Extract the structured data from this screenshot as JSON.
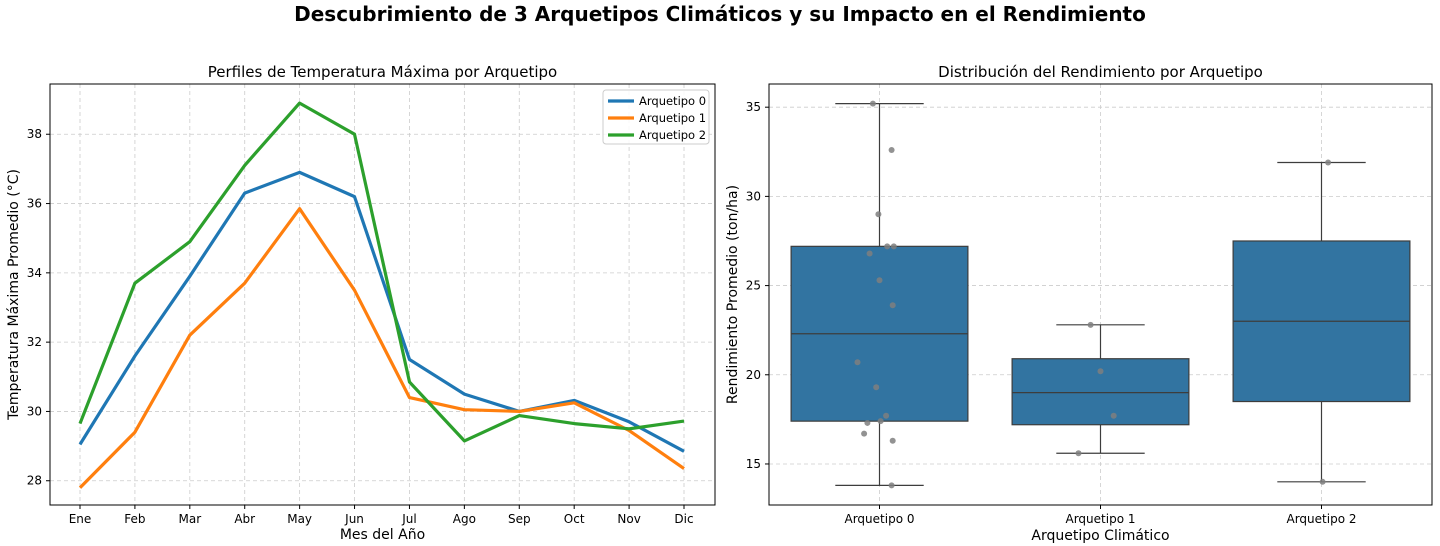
{
  "suptitle": "Descubrimiento de 3 Arquetipos Climáticos y su Impacto en el Rendimiento",
  "chart_data": [
    {
      "type": "line",
      "title": "Perfiles de Temperatura Máxima por Arquetipo",
      "xlabel": "Mes del Año",
      "ylabel": "Temperatura Máxima Promedio (°C)",
      "categories": [
        "Ene",
        "Feb",
        "Mar",
        "Abr",
        "May",
        "Jun",
        "Jul",
        "Ago",
        "Sep",
        "Oct",
        "Nov",
        "Dic"
      ],
      "ylim": [
        27.3,
        39.45
      ],
      "yticks": [
        28,
        30,
        32,
        34,
        36,
        38
      ],
      "grid": true,
      "legend": "top-right",
      "series": [
        {
          "name": "Arquetipo 0",
          "color": "#1f77b4",
          "values": [
            29.05,
            31.6,
            33.9,
            36.3,
            36.9,
            36.2,
            31.5,
            30.5,
            30.0,
            30.32,
            29.7,
            28.85
          ]
        },
        {
          "name": "Arquetipo 1",
          "color": "#ff7f0e",
          "values": [
            27.8,
            29.4,
            32.2,
            33.7,
            35.85,
            33.5,
            30.4,
            30.05,
            30.0,
            30.25,
            29.45,
            28.35
          ]
        },
        {
          "name": "Arquetipo 2",
          "color": "#2ca02c",
          "values": [
            29.65,
            33.7,
            34.9,
            37.1,
            38.9,
            38.0,
            30.85,
            29.15,
            29.88,
            29.65,
            29.5,
            29.72
          ]
        }
      ]
    },
    {
      "type": "box",
      "title": "Distribución del Rendimiento por Arquetipo",
      "xlabel": "Arquetipo Climático",
      "ylabel": "Rendimiento Promedio (ton/ha)",
      "categories": [
        "Arquetipo 0",
        "Arquetipo 1",
        "Arquetipo 2"
      ],
      "ylim": [
        12.7,
        36.3
      ],
      "yticks": [
        15,
        20,
        25,
        30,
        35
      ],
      "grid": true,
      "box_color": "#3274a1",
      "boxes": [
        {
          "whislo": 13.8,
          "q1": 17.4,
          "med": 22.3,
          "q3": 27.2,
          "whishi": 35.2
        },
        {
          "whislo": 15.6,
          "q1": 17.2,
          "med": 19.0,
          "q3": 20.9,
          "whishi": 22.8
        },
        {
          "whislo": 14.0,
          "q1": 18.5,
          "med": 23.0,
          "q3": 27.5,
          "whishi": 31.9
        }
      ],
      "points": [
        [
          35.2,
          32.6,
          29.0,
          27.2,
          27.2,
          26.8,
          25.3,
          23.9,
          20.7,
          19.3,
          17.7,
          17.4,
          17.3,
          16.7,
          16.3,
          13.8
        ],
        [
          22.8,
          20.2,
          17.7,
          15.6
        ],
        [
          31.9,
          14.0
        ]
      ]
    }
  ]
}
